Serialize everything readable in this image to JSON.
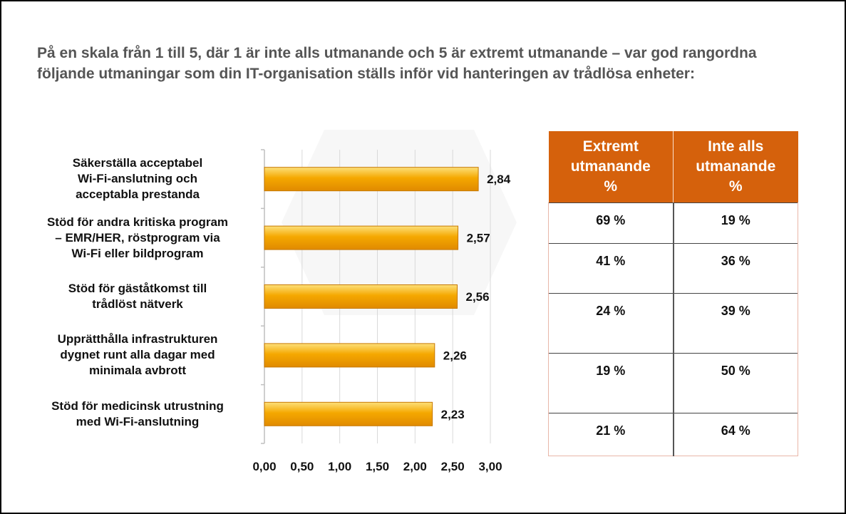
{
  "title": "På en skala från 1 till 5, där 1 är inte alls utmanande och 5 är extremt utmanande – var god rangordna följande utmaningar som din IT-organisation ställs inför vid hanteringen av trådlösa enheter:",
  "chart_data": {
    "type": "bar",
    "orientation": "horizontal",
    "categories": [
      "Säkerställa acceptabel Wi-Fi-anslutning och acceptabla prestanda",
      "Stöd för andra kritiska program – EMR/HER, röstprogram via Wi-Fi eller bildprogram",
      "Stöd för gäståtkomst till trådlöst nätverk",
      "Upprätthålla infrastrukturen dygnet runt alla dagar med minimala avbrott",
      "Stöd för medicinsk utrustning med Wi-Fi-anslutning"
    ],
    "category_lines": [
      [
        "Säkerställa acceptabel",
        "Wi-Fi-anslutning och",
        "acceptabla prestanda"
      ],
      [
        "Stöd för andra kritiska program",
        "– EMR/HER, röstprogram via",
        "Wi-Fi eller bildprogram"
      ],
      [
        "Stöd för gäståtkomst till",
        "trådlöst nätverk"
      ],
      [
        "Upprätthålla infrastrukturen",
        "dygnet runt alla dagar med",
        "minimala avbrott"
      ],
      [
        "Stöd för medicinsk utrustning",
        "med Wi-Fi-anslutning"
      ]
    ],
    "values": [
      2.84,
      2.57,
      2.56,
      2.26,
      2.23
    ],
    "value_labels": [
      "2,84",
      "2,57",
      "2,56",
      "2,26",
      "2,23"
    ],
    "xlim": [
      0,
      3
    ],
    "x_ticks": [
      "0,00",
      "0,50",
      "1,00",
      "1,50",
      "2,00",
      "2,50",
      "3,00"
    ],
    "grid": true,
    "bar_color": "#f5a800"
  },
  "table": {
    "headers": [
      [
        "Extremt",
        "utmanande",
        "%"
      ],
      [
        "Inte alls",
        "utmanande",
        "%"
      ]
    ],
    "rows": [
      [
        "69 %",
        "19 %"
      ],
      [
        "41 %",
        "36 %"
      ],
      [
        "24 %",
        "39 %"
      ],
      [
        "19 %",
        "50 %"
      ],
      [
        "21 %",
        "64 %"
      ]
    ]
  }
}
